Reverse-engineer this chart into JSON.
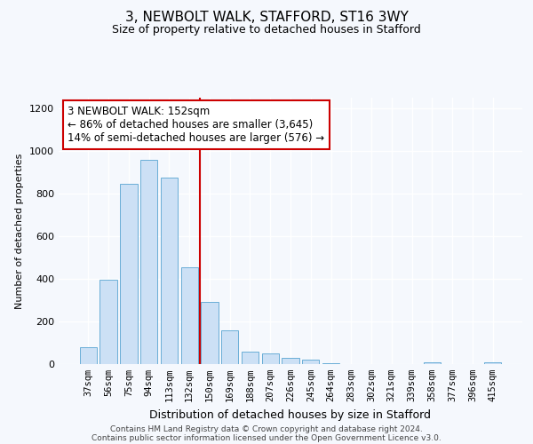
{
  "title": "3, NEWBOLT WALK, STAFFORD, ST16 3WY",
  "subtitle": "Size of property relative to detached houses in Stafford",
  "xlabel": "Distribution of detached houses by size in Stafford",
  "ylabel": "Number of detached properties",
  "categories": [
    "37sqm",
    "56sqm",
    "75sqm",
    "94sqm",
    "113sqm",
    "132sqm",
    "150sqm",
    "169sqm",
    "188sqm",
    "207sqm",
    "226sqm",
    "245sqm",
    "264sqm",
    "283sqm",
    "302sqm",
    "321sqm",
    "339sqm",
    "358sqm",
    "377sqm",
    "396sqm",
    "415sqm"
  ],
  "values": [
    80,
    395,
    845,
    960,
    875,
    455,
    290,
    160,
    60,
    48,
    30,
    20,
    5,
    0,
    0,
    0,
    0,
    10,
    0,
    0,
    10
  ],
  "bar_color": "#cce0f5",
  "bar_edge_color": "#6aaed6",
  "vline_color": "#cc0000",
  "annotation_text": "3 NEWBOLT WALK: 152sqm\n← 86% of detached houses are smaller (3,645)\n14% of semi-detached houses are larger (576) →",
  "annotation_box_color": "#ffffff",
  "annotation_box_edge": "#cc0000",
  "ylim": [
    0,
    1250
  ],
  "yticks": [
    0,
    200,
    400,
    600,
    800,
    1000,
    1200
  ],
  "footer1": "Contains HM Land Registry data © Crown copyright and database right 2024.",
  "footer2": "Contains public sector information licensed under the Open Government Licence v3.0.",
  "bg_color": "#f5f8fd",
  "plot_bg_color": "#f5f8fd",
  "title_fontsize": 11,
  "subtitle_fontsize": 9,
  "ylabel_fontsize": 8,
  "xlabel_fontsize": 9,
  "tick_fontsize": 8,
  "xtick_fontsize": 7.5,
  "footer_fontsize": 6.5,
  "annotation_fontsize": 8.5,
  "vline_index": 6
}
